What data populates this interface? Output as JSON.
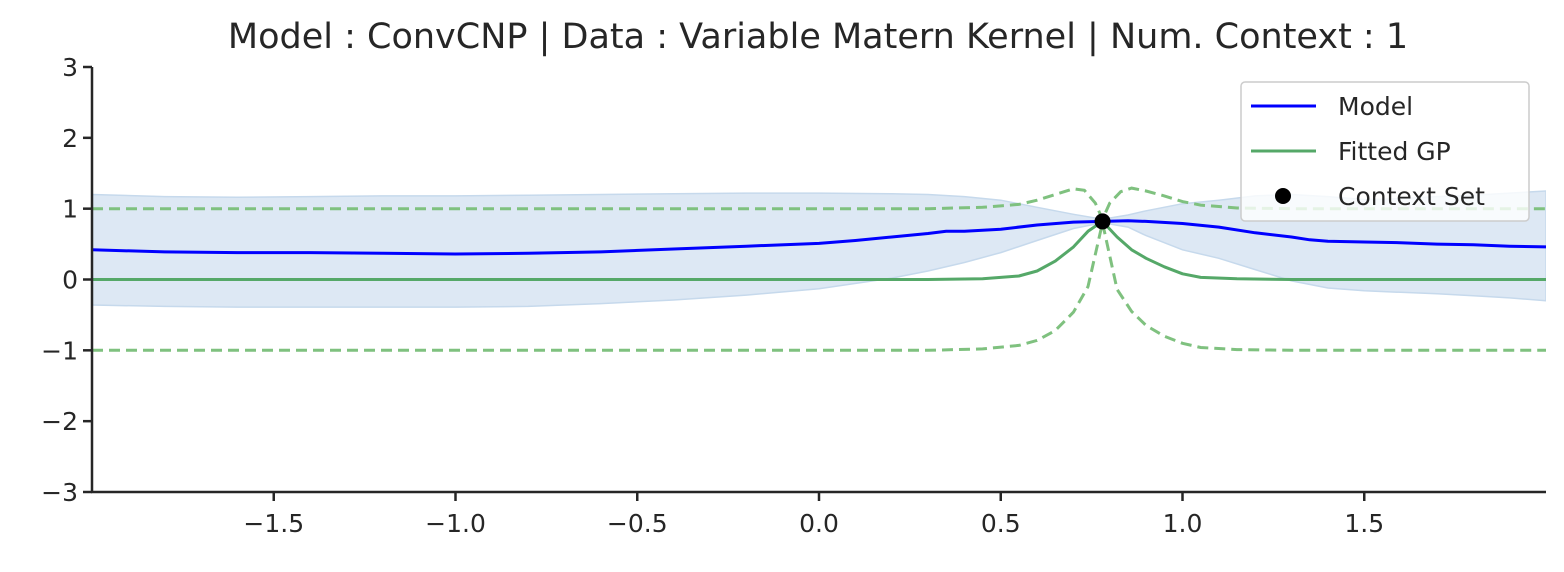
{
  "chart_data": {
    "type": "line",
    "title": "Model : ConvCNP | Data : Variable Matern Kernel | Num. Context : 1",
    "xlabel": "",
    "ylabel": "",
    "xlim": [
      -2.0,
      2.0
    ],
    "ylim": [
      -3,
      3
    ],
    "x_ticks": [
      -1.5,
      -1.0,
      -0.5,
      0.0,
      0.5,
      1.0,
      1.5
    ],
    "x_tick_labels": [
      "−1.5",
      "−1.0",
      "−0.5",
      "0.0",
      "0.5",
      "1.0",
      "1.5"
    ],
    "y_ticks": [
      -3,
      -2,
      -1,
      0,
      1,
      2,
      3
    ],
    "y_tick_labels": [
      "−3",
      "−2",
      "−1",
      "0",
      "1",
      "2",
      "3"
    ],
    "grid": false,
    "legend_position": "top-right",
    "series": [
      {
        "name": "Model",
        "kind": "line",
        "color": "#0000ff",
        "x": [
          -2.0,
          -1.8,
          -1.6,
          -1.4,
          -1.2,
          -1.0,
          -0.8,
          -0.6,
          -0.4,
          -0.2,
          0.0,
          0.1,
          0.2,
          0.3,
          0.35,
          0.4,
          0.5,
          0.6,
          0.7,
          0.78,
          0.85,
          0.9,
          1.0,
          1.1,
          1.2,
          1.3,
          1.35,
          1.4,
          1.5,
          1.6,
          1.7,
          1.8,
          1.9,
          2.0
        ],
        "y": [
          0.42,
          0.39,
          0.38,
          0.38,
          0.37,
          0.36,
          0.37,
          0.39,
          0.43,
          0.47,
          0.51,
          0.55,
          0.6,
          0.65,
          0.68,
          0.68,
          0.71,
          0.77,
          0.81,
          0.82,
          0.83,
          0.82,
          0.79,
          0.74,
          0.66,
          0.6,
          0.56,
          0.54,
          0.53,
          0.52,
          0.5,
          0.49,
          0.47,
          0.46
        ]
      },
      {
        "name": "Model uncertainty",
        "kind": "band",
        "color": "#c6d9ec",
        "x": [
          -2.0,
          -1.8,
          -1.6,
          -1.4,
          -1.2,
          -1.0,
          -0.8,
          -0.6,
          -0.4,
          -0.2,
          0.0,
          0.2,
          0.3,
          0.4,
          0.5,
          0.6,
          0.7,
          0.78,
          0.85,
          0.9,
          1.0,
          1.1,
          1.2,
          1.3,
          1.4,
          1.5,
          1.6,
          1.7,
          1.8,
          1.9,
          2.0
        ],
        "upper": [
          1.2,
          1.17,
          1.16,
          1.17,
          1.18,
          1.18,
          1.19,
          1.2,
          1.21,
          1.22,
          1.22,
          1.21,
          1.2,
          1.17,
          1.12,
          1.02,
          0.92,
          0.85,
          0.91,
          0.97,
          1.07,
          1.12,
          1.18,
          1.2,
          1.17,
          1.13,
          1.14,
          1.17,
          1.19,
          1.22,
          1.25
        ],
        "lower": [
          -0.36,
          -0.38,
          -0.39,
          -0.39,
          -0.39,
          -0.39,
          -0.38,
          -0.34,
          -0.29,
          -0.22,
          -0.13,
          0.02,
          0.12,
          0.24,
          0.38,
          0.55,
          0.72,
          0.8,
          0.74,
          0.62,
          0.42,
          0.3,
          0.14,
          -0.02,
          -0.12,
          -0.16,
          -0.18,
          -0.2,
          -0.23,
          -0.26,
          -0.3
        ]
      },
      {
        "name": "Fitted GP",
        "kind": "line",
        "color": "#55a868",
        "x": [
          -2.0,
          0.3,
          0.45,
          0.55,
          0.6,
          0.65,
          0.7,
          0.74,
          0.78,
          0.82,
          0.86,
          0.9,
          0.95,
          1.0,
          1.05,
          1.15,
          1.3,
          2.0
        ],
        "y": [
          0.0,
          0.0,
          0.01,
          0.05,
          0.12,
          0.26,
          0.46,
          0.68,
          0.82,
          0.6,
          0.42,
          0.3,
          0.18,
          0.08,
          0.03,
          0.01,
          0.0,
          0.0
        ]
      },
      {
        "name": "Fitted GP upper",
        "kind": "dashed",
        "color": "#7fc17f",
        "x": [
          -2.0,
          0.3,
          0.45,
          0.55,
          0.6,
          0.65,
          0.7,
          0.73,
          0.76,
          0.78,
          0.8,
          0.83,
          0.86,
          0.9,
          0.95,
          1.0,
          1.05,
          1.15,
          1.3,
          2.0
        ],
        "y": [
          1.0,
          1.0,
          1.02,
          1.06,
          1.12,
          1.2,
          1.28,
          1.26,
          1.08,
          0.85,
          1.08,
          1.24,
          1.29,
          1.25,
          1.18,
          1.1,
          1.05,
          1.01,
          1.0,
          1.0
        ]
      },
      {
        "name": "Fitted GP lower",
        "kind": "dashed",
        "color": "#7fc17f",
        "x": [
          -2.0,
          0.3,
          0.45,
          0.55,
          0.6,
          0.65,
          0.7,
          0.74,
          0.78,
          0.82,
          0.86,
          0.9,
          0.95,
          1.0,
          1.05,
          1.15,
          1.3,
          2.0
        ],
        "y": [
          -1.0,
          -1.0,
          -0.98,
          -0.93,
          -0.86,
          -0.72,
          -0.46,
          -0.1,
          0.8,
          -0.14,
          -0.45,
          -0.65,
          -0.8,
          -0.9,
          -0.96,
          -0.99,
          -1.0,
          -1.0
        ]
      },
      {
        "name": "Context Set",
        "kind": "scatter",
        "color": "#000000",
        "x": [
          0.78
        ],
        "y": [
          0.82
        ]
      }
    ],
    "legend": [
      {
        "label": "Model",
        "kind": "line",
        "color": "#0000ff"
      },
      {
        "label": "Fitted GP",
        "kind": "line",
        "color": "#55a868"
      },
      {
        "label": "Context Set",
        "kind": "marker",
        "color": "#000000"
      }
    ]
  }
}
